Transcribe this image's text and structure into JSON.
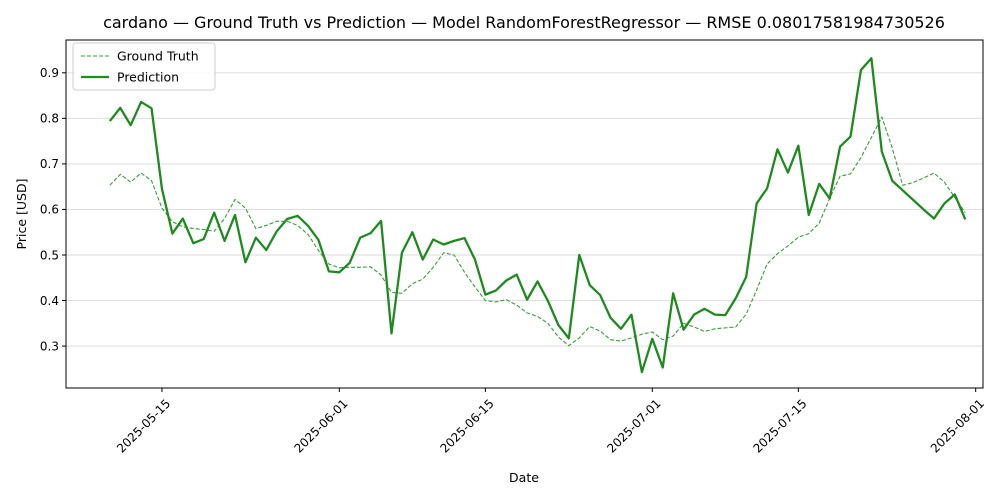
{
  "chart_data": {
    "type": "line",
    "title": "cardano — Ground Truth vs Prediction — Model RandomForestRegressor — RMSE 0.08017581984730526",
    "xlabel": "Date",
    "ylabel": "Price [USD]",
    "grid": "horizontal",
    "legend_position": "top-left",
    "x_start_date": "2025-05-10",
    "xlim_days": [
      -4.2,
      83.7
    ],
    "ylim": [
      0.208,
      0.972
    ],
    "x_ticks": [
      {
        "day": 5,
        "label": "2025-05-15"
      },
      {
        "day": 22,
        "label": "2025-06-01"
      },
      {
        "day": 36,
        "label": "2025-06-15"
      },
      {
        "day": 52,
        "label": "2025-07-01"
      },
      {
        "day": 66,
        "label": "2025-07-15"
      },
      {
        "day": 83,
        "label": "2025-08-01"
      }
    ],
    "y_ticks": [
      {
        "value": 0.3,
        "label": "0.3"
      },
      {
        "value": 0.4,
        "label": "0.4"
      },
      {
        "value": 0.5,
        "label": "0.5"
      },
      {
        "value": 0.6,
        "label": "0.6"
      },
      {
        "value": 0.7,
        "label": "0.7"
      },
      {
        "value": 0.8,
        "label": "0.8"
      },
      {
        "value": 0.9,
        "label": "0.9"
      }
    ],
    "x_days": [
      0,
      1,
      2,
      3,
      4,
      5,
      6,
      7,
      8,
      9,
      10,
      11,
      12,
      13,
      14,
      15,
      16,
      17,
      18,
      19,
      20,
      21,
      22,
      23,
      24,
      25,
      26,
      27,
      28,
      29,
      30,
      31,
      32,
      33,
      34,
      35,
      36,
      37,
      38,
      39,
      40,
      41,
      42,
      43,
      44,
      45,
      46,
      47,
      48,
      49,
      50,
      51,
      52,
      53,
      54,
      55,
      56,
      57,
      58,
      59,
      60,
      61,
      62,
      63,
      64,
      65,
      66,
      67,
      68,
      69,
      70,
      71,
      72,
      73,
      74,
      75,
      76,
      77,
      78,
      79,
      80,
      81,
      82
    ],
    "series": [
      {
        "name": "Ground Truth",
        "style": "dashed",
        "color": "#3a9c3a",
        "values": [
          0.653,
          0.677,
          0.66,
          0.68,
          0.663,
          0.603,
          0.573,
          0.562,
          0.558,
          0.556,
          0.552,
          0.58,
          0.622,
          0.603,
          0.558,
          0.565,
          0.574,
          0.574,
          0.565,
          0.545,
          0.51,
          0.48,
          0.472,
          0.473,
          0.473,
          0.474,
          0.456,
          0.418,
          0.416,
          0.437,
          0.447,
          0.473,
          0.505,
          0.5,
          0.462,
          0.43,
          0.4,
          0.397,
          0.402,
          0.39,
          0.373,
          0.365,
          0.35,
          0.32,
          0.301,
          0.318,
          0.343,
          0.333,
          0.314,
          0.311,
          0.318,
          0.326,
          0.331,
          0.314,
          0.322,
          0.35,
          0.342,
          0.332,
          0.338,
          0.34,
          0.342,
          0.37,
          0.423,
          0.48,
          0.503,
          0.52,
          0.539,
          0.547,
          0.57,
          0.624,
          0.673,
          0.678,
          0.714,
          0.758,
          0.803,
          0.735,
          0.653,
          0.659,
          0.669,
          0.68,
          0.66,
          0.626,
          0.593
        ]
      },
      {
        "name": "Prediction",
        "style": "solid",
        "color": "#1f8a1f",
        "values": [
          0.794,
          0.823,
          0.785,
          0.836,
          0.822,
          0.645,
          0.547,
          0.58,
          0.526,
          0.535,
          0.593,
          0.531,
          0.588,
          0.484,
          0.538,
          0.511,
          0.552,
          0.579,
          0.586,
          0.564,
          0.533,
          0.464,
          0.462,
          0.483,
          0.538,
          0.548,
          0.575,
          0.328,
          0.505,
          0.55,
          0.49,
          0.534,
          0.523,
          0.531,
          0.537,
          0.49,
          0.413,
          0.422,
          0.444,
          0.457,
          0.402,
          0.442,
          0.399,
          0.346,
          0.317,
          0.5,
          0.434,
          0.412,
          0.362,
          0.338,
          0.369,
          0.243,
          0.316,
          0.253,
          0.416,
          0.336,
          0.369,
          0.382,
          0.369,
          0.368,
          0.405,
          0.452,
          0.613,
          0.646,
          0.732,
          0.681,
          0.74,
          0.588,
          0.656,
          0.624,
          0.738,
          0.76,
          0.906,
          0.932,
          0.727,
          0.663,
          0.642,
          0.621,
          0.6,
          0.58,
          0.613,
          0.633,
          0.578
        ]
      }
    ]
  }
}
